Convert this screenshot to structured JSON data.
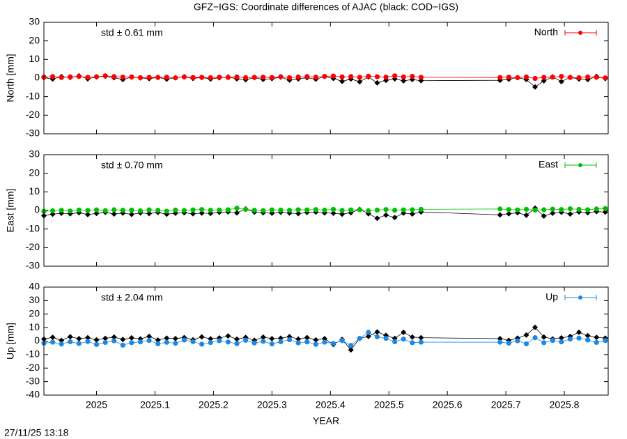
{
  "title": "GFZ−IGS: Coordinate differences of AJAC (black: COD−IGS)",
  "footer": "27/11/25 13:18",
  "chart_data": [
    {
      "type": "line",
      "ylabel": "North [mm]",
      "annotation": "std ± 0.61 mm",
      "annotation_color": "#ff0000",
      "xlim": [
        2024.91,
        2025.875
      ],
      "xticks": [
        2025,
        2025.1,
        2025.2,
        2025.3,
        2025.4,
        2025.5,
        2025.6,
        2025.7,
        2025.8
      ],
      "ylim": [
        -30,
        30
      ],
      "yticks": [
        -30,
        -20,
        -10,
        0,
        10,
        20,
        30
      ],
      "legend": "upper right",
      "x": [
        2024.91,
        2024.925,
        2024.94,
        2024.955,
        2024.97,
        2024.985,
        2025.0,
        2025.015,
        2025.03,
        2025.045,
        2025.06,
        2025.075,
        2025.09,
        2025.105,
        2025.12,
        2025.135,
        2025.15,
        2025.165,
        2025.18,
        2025.195,
        2025.21,
        2025.225,
        2025.24,
        2025.255,
        2025.27,
        2025.285,
        2025.3,
        2025.315,
        2025.33,
        2025.345,
        2025.36,
        2025.375,
        2025.39,
        2025.405,
        2025.42,
        2025.435,
        2025.45,
        2025.465,
        2025.48,
        2025.495,
        2025.51,
        2025.525,
        2025.54,
        2025.555,
        2025.69,
        2025.705,
        2025.72,
        2025.735,
        2025.75,
        2025.765,
        2025.78,
        2025.795,
        2025.81,
        2025.825,
        2025.84,
        2025.855,
        2025.87
      ],
      "series": [
        {
          "color": "#000000",
          "marker": "diamond",
          "values": [
            0.2,
            -0.5,
            0.8,
            0.3,
            1.2,
            -0.4,
            0.6,
            1.0,
            0.2,
            -0.8,
            0.5,
            0.1,
            -0.3,
            0.4,
            -0.6,
            0.2,
            0.7,
            -0.2,
            0.3,
            -0.5,
            0.1,
            0.6,
            -0.4,
            -0.9,
            0.2,
            -0.7,
            -0.3,
            0.5,
            -1.1,
            -0.4,
            0.2,
            -0.6,
            0.8,
            -0.2,
            -1.8,
            -0.5,
            -2.0,
            0.6,
            -2.6,
            -1.2,
            -0.4,
            -1.5,
            -0.8,
            -1.4,
            -1.2,
            -0.6,
            0.3,
            -0.8,
            -4.8,
            -1.5,
            0.6,
            -1.9,
            0.4,
            -0.5,
            -0.8,
            0.9,
            -0.3
          ]
        },
        {
          "name": "North",
          "color": "#ff0000",
          "marker": "circle",
          "values": [
            0.5,
            0.8,
            0.3,
            0.6,
            0.9,
            0.4,
            0.7,
            1.2,
            0.8,
            0.5,
            0.6,
            0.2,
            0.4,
            0.3,
            0.5,
            0.1,
            0.6,
            0.3,
            0.4,
            0.2,
            0.5,
            0.3,
            0.6,
            0.2,
            0.4,
            0.5,
            0.3,
            0.7,
            0.2,
            0.6,
            0.8,
            0.5,
            0.9,
            1.1,
            0.6,
            0.8,
            0.4,
            1.0,
            0.7,
            0.5,
            1.2,
            0.6,
            0.9,
            0.4,
            0.3,
            0.5,
            0.2,
            0.6,
            -0.2,
            0.4,
            0.5,
            0.9,
            0.3,
            0.2,
            0.6,
            0.4,
            0.1
          ]
        }
      ]
    },
    {
      "type": "line",
      "ylabel": "East [mm]",
      "annotation": "std ± 0.70 mm",
      "annotation_color": "#00c000",
      "xlim": [
        2024.91,
        2025.875
      ],
      "xticks": [
        2025,
        2025.1,
        2025.2,
        2025.3,
        2025.4,
        2025.5,
        2025.6,
        2025.7,
        2025.8
      ],
      "ylim": [
        -30,
        30
      ],
      "yticks": [
        -30,
        -20,
        -10,
        0,
        10,
        20,
        30
      ],
      "legend": "upper right",
      "x": [
        2024.91,
        2024.925,
        2024.94,
        2024.955,
        2024.97,
        2024.985,
        2025.0,
        2025.015,
        2025.03,
        2025.045,
        2025.06,
        2025.075,
        2025.09,
        2025.105,
        2025.12,
        2025.135,
        2025.15,
        2025.165,
        2025.18,
        2025.195,
        2025.21,
        2025.225,
        2025.24,
        2025.255,
        2025.27,
        2025.285,
        2025.3,
        2025.315,
        2025.33,
        2025.345,
        2025.36,
        2025.375,
        2025.39,
        2025.405,
        2025.42,
        2025.435,
        2025.45,
        2025.465,
        2025.48,
        2025.495,
        2025.51,
        2025.525,
        2025.54,
        2025.555,
        2025.69,
        2025.705,
        2025.72,
        2025.735,
        2025.75,
        2025.765,
        2025.78,
        2025.795,
        2025.81,
        2025.825,
        2025.84,
        2025.855,
        2025.87
      ],
      "series": [
        {
          "color": "#000000",
          "marker": "diamond",
          "values": [
            -2.8,
            -2.0,
            -1.5,
            -1.8,
            -1.2,
            -2.2,
            -1.6,
            -1.0,
            -1.9,
            -1.4,
            -2.1,
            -1.3,
            -1.7,
            -1.1,
            -2.0,
            -1.5,
            -1.2,
            -1.8,
            -1.4,
            -1.6,
            -1.0,
            -0.8,
            -1.3,
            0.8,
            -0.9,
            -1.2,
            -1.5,
            -1.0,
            -1.4,
            -1.7,
            -1.1,
            -0.9,
            -1.3,
            -1.5,
            -2.0,
            -1.2,
            0.6,
            -1.8,
            -4.2,
            -2.5,
            -3.8,
            -1.4,
            -1.9,
            -0.8,
            -2.4,
            -1.8,
            -1.2,
            -2.6,
            1.2,
            -3.0,
            -1.5,
            -1.0,
            -1.9,
            -0.8,
            -1.2,
            -0.6,
            -0.9
          ]
        },
        {
          "name": "East",
          "color": "#00c000",
          "marker": "circle",
          "values": [
            -0.5,
            -0.2,
            0.1,
            -0.3,
            0.2,
            0.0,
            0.3,
            -0.1,
            0.4,
            0.1,
            0.2,
            -0.2,
            0.3,
            0.1,
            -0.4,
            0.2,
            0.0,
            0.3,
            0.5,
            0.1,
            0.2,
            0.4,
            1.2,
            0.6,
            0.1,
            -0.1,
            0.3,
            0.2,
            0.1,
            0.4,
            0.3,
            0.5,
            0.2,
            0.6,
            0.0,
            0.3,
            0.4,
            -0.2,
            0.2,
            0.5,
            0.1,
            0.3,
            0.4,
            0.6,
            0.8,
            0.5,
            0.3,
            0.6,
            0.2,
            0.4,
            0.7,
            0.5,
            0.9,
            0.6,
            0.4,
            0.8,
            1.0
          ]
        }
      ]
    },
    {
      "type": "line",
      "ylabel": "Up [mm]",
      "xlabel": "YEAR",
      "annotation": "std ± 2.04 mm",
      "annotation_color": "#1e88e5",
      "xlim": [
        2024.91,
        2025.875
      ],
      "xticks": [
        2025,
        2025.1,
        2025.2,
        2025.3,
        2025.4,
        2025.5,
        2025.6,
        2025.7,
        2025.8
      ],
      "ylim": [
        -40,
        40
      ],
      "yticks": [
        -40,
        -30,
        -20,
        -10,
        0,
        10,
        20,
        30,
        40
      ],
      "legend": "upper right",
      "x": [
        2024.91,
        2024.925,
        2024.94,
        2024.955,
        2024.97,
        2024.985,
        2025.0,
        2025.015,
        2025.03,
        2025.045,
        2025.06,
        2025.075,
        2025.09,
        2025.105,
        2025.12,
        2025.135,
        2025.15,
        2025.165,
        2025.18,
        2025.195,
        2025.21,
        2025.225,
        2025.24,
        2025.255,
        2025.27,
        2025.285,
        2025.3,
        2025.315,
        2025.33,
        2025.345,
        2025.36,
        2025.375,
        2025.39,
        2025.405,
        2025.42,
        2025.435,
        2025.45,
        2025.465,
        2025.48,
        2025.495,
        2025.51,
        2025.525,
        2025.54,
        2025.555,
        2025.69,
        2025.705,
        2025.72,
        2025.735,
        2025.75,
        2025.765,
        2025.78,
        2025.795,
        2025.81,
        2025.825,
        2025.84,
        2025.855,
        2025.87
      ],
      "series": [
        {
          "color": "#000000",
          "marker": "diamond",
          "values": [
            1.5,
            2.8,
            0.5,
            3.2,
            1.8,
            2.5,
            0.9,
            2.0,
            3.0,
            1.2,
            2.4,
            1.6,
            3.5,
            0.8,
            2.2,
            1.9,
            2.6,
            1.0,
            3.1,
            1.7,
            2.3,
            3.8,
            1.4,
            2.7,
            0.6,
            2.9,
            1.8,
            2.1,
            3.3,
            1.5,
            2.6,
            0.9,
            1.8,
            -2.5,
            1.2,
            -6.5,
            2.0,
            3.5,
            6.8,
            4.2,
            2.0,
            6.5,
            3.0,
            2.5,
            1.8,
            0.5,
            2.2,
            4.5,
            10.2,
            3.0,
            1.6,
            2.4,
            3.5,
            6.5,
            4.0,
            2.8,
            2.2
          ]
        },
        {
          "name": "Up",
          "color": "#1e88e5",
          "marker": "circle",
          "values": [
            -1.5,
            -0.8,
            -2.2,
            -0.5,
            -1.8,
            -0.3,
            -2.5,
            -1.0,
            0.2,
            -3.0,
            -1.2,
            -0.6,
            0.5,
            -2.0,
            -0.9,
            -1.6,
            0.8,
            -0.4,
            -2.3,
            -1.1,
            0.3,
            -0.7,
            -1.9,
            0.6,
            -1.4,
            -0.2,
            -2.1,
            -0.5,
            1.0,
            -1.3,
            -0.6,
            -2.4,
            -0.8,
            -1.7,
            0.4,
            -3.2,
            2.0,
            6.5,
            3.2,
            2.0,
            -0.5,
            1.5,
            -1.2,
            -0.8,
            -0.8,
            -1.5,
            0.2,
            -2.0,
            2.5,
            -1.2,
            0.5,
            -0.6,
            1.5,
            2.2,
            0.8,
            -1.0,
            0.4
          ]
        }
      ]
    }
  ]
}
